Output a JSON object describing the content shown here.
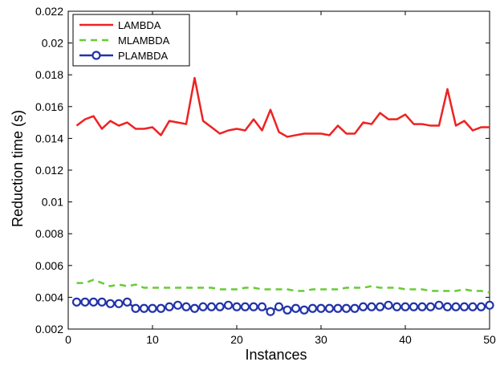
{
  "chart_data": {
    "type": "line",
    "title": "",
    "xlabel": "Instances",
    "ylabel": "Reduction time (s)",
    "xlim": [
      0,
      50
    ],
    "ylim": [
      0.002,
      0.022
    ],
    "xticks": [
      "0",
      "10",
      "20",
      "30",
      "40",
      "50"
    ],
    "yticks": [
      "0.002",
      "0.004",
      "0.006",
      "0.008",
      "0.01",
      "0.012",
      "0.014",
      "0.016",
      "0.018",
      "0.02",
      "0.022"
    ],
    "legend_position": "top-left",
    "grid": false,
    "x": [
      1,
      2,
      3,
      4,
      5,
      6,
      7,
      8,
      9,
      10,
      11,
      12,
      13,
      14,
      15,
      16,
      17,
      18,
      19,
      20,
      21,
      22,
      23,
      24,
      25,
      26,
      27,
      28,
      29,
      30,
      31,
      32,
      33,
      34,
      35,
      36,
      37,
      38,
      39,
      40,
      41,
      42,
      43,
      44,
      45,
      46,
      47,
      48,
      49,
      50
    ],
    "series": [
      {
        "name": "LAMBDA",
        "color": "#ee2222",
        "style": "solid",
        "marker": "none",
        "values": [
          0.0148,
          0.0152,
          0.0154,
          0.0146,
          0.0151,
          0.0148,
          0.015,
          0.0146,
          0.0146,
          0.0147,
          0.0142,
          0.0151,
          0.015,
          0.0149,
          0.0178,
          0.0151,
          0.0147,
          0.0143,
          0.0145,
          0.0146,
          0.0145,
          0.0152,
          0.0145,
          0.0158,
          0.0144,
          0.0141,
          0.0142,
          0.0143,
          0.0143,
          0.0143,
          0.0142,
          0.0148,
          0.0143,
          0.0143,
          0.015,
          0.0149,
          0.0156,
          0.0152,
          0.0152,
          0.0155,
          0.0149,
          0.0149,
          0.0148,
          0.0148,
          0.0171,
          0.0148,
          0.0151,
          0.0145,
          0.0147,
          0.0147
        ]
      },
      {
        "name": "MLAMBDA",
        "color": "#66cc33",
        "style": "dashed",
        "marker": "none",
        "values": [
          0.0049,
          0.0049,
          0.0051,
          0.0049,
          0.0047,
          0.0048,
          0.0047,
          0.0048,
          0.0046,
          0.0046,
          0.0046,
          0.0046,
          0.0046,
          0.0046,
          0.0046,
          0.0046,
          0.0046,
          0.0045,
          0.0045,
          0.0045,
          0.0046,
          0.0046,
          0.0045,
          0.0045,
          0.0045,
          0.0045,
          0.0044,
          0.0044,
          0.0045,
          0.0045,
          0.0045,
          0.0045,
          0.0046,
          0.0046,
          0.0046,
          0.0047,
          0.0046,
          0.0046,
          0.0046,
          0.0045,
          0.0045,
          0.0045,
          0.0044,
          0.0044,
          0.0044,
          0.0044,
          0.0045,
          0.0044,
          0.0044,
          0.0043
        ]
      },
      {
        "name": "PLAMBDA",
        "color": "#2233aa",
        "style": "solid",
        "marker": "circle",
        "values": [
          0.0037,
          0.0037,
          0.0037,
          0.0037,
          0.0036,
          0.0036,
          0.0037,
          0.0033,
          0.0033,
          0.0033,
          0.0033,
          0.0034,
          0.0035,
          0.0034,
          0.0033,
          0.0034,
          0.0034,
          0.0034,
          0.0035,
          0.0034,
          0.0034,
          0.0034,
          0.0034,
          0.0031,
          0.0034,
          0.0032,
          0.0033,
          0.0032,
          0.0033,
          0.0033,
          0.0033,
          0.0033,
          0.0033,
          0.0033,
          0.0034,
          0.0034,
          0.0034,
          0.0035,
          0.0034,
          0.0034,
          0.0034,
          0.0034,
          0.0034,
          0.0035,
          0.0034,
          0.0034,
          0.0034,
          0.0034,
          0.0034,
          0.0035
        ]
      }
    ]
  }
}
